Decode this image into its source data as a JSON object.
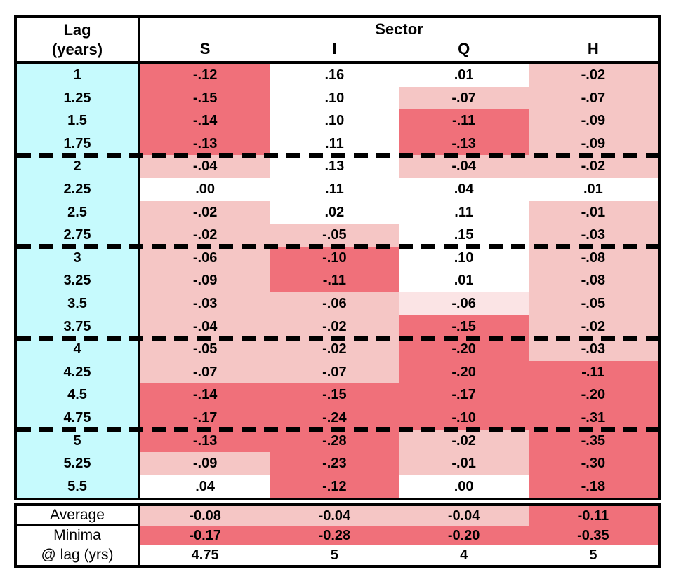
{
  "header": {
    "lag_title": "Lag",
    "lag_subtitle": "(years)",
    "sector_title": "Sector",
    "columns": [
      "S",
      "I",
      "Q",
      "H"
    ]
  },
  "colors": {
    "white": "#FFFFFF",
    "xlight": "#FBE4E5",
    "light": "#F5C6C5",
    "dark": "#F0707A",
    "cyan": "#C6FAFD"
  },
  "rows": [
    {
      "lag": "1",
      "bold": true,
      "group_end": false,
      "values": [
        "-.12",
        ".16",
        ".01",
        "-.02"
      ],
      "shades": [
        "dark",
        "white",
        "white",
        "light"
      ]
    },
    {
      "lag": "1.25",
      "bold": false,
      "group_end": false,
      "values": [
        "-.15",
        ".10",
        "-.07",
        "-.07"
      ],
      "shades": [
        "dark",
        "white",
        "light",
        "light"
      ]
    },
    {
      "lag": "1.5",
      "bold": false,
      "group_end": false,
      "values": [
        "-.14",
        ".10",
        "-.11",
        "-.09"
      ],
      "shades": [
        "dark",
        "white",
        "dark",
        "light"
      ]
    },
    {
      "lag": "1.75",
      "bold": false,
      "group_end": true,
      "values": [
        "-.13",
        ".11",
        "-.13",
        "-.09"
      ],
      "shades": [
        "dark",
        "white",
        "dark",
        "light"
      ]
    },
    {
      "lag": "2",
      "bold": true,
      "group_end": false,
      "values": [
        "-.04",
        ".13",
        "-.04",
        "-.02"
      ],
      "shades": [
        "light",
        "white",
        "light",
        "light"
      ]
    },
    {
      "lag": "2.25",
      "bold": false,
      "group_end": false,
      "values": [
        ".00",
        ".11",
        ".04",
        ".01"
      ],
      "shades": [
        "white",
        "white",
        "white",
        "white"
      ]
    },
    {
      "lag": "2.5",
      "bold": false,
      "group_end": false,
      "values": [
        "-.02",
        ".02",
        ".11",
        "-.01"
      ],
      "shades": [
        "light",
        "white",
        "white",
        "light"
      ]
    },
    {
      "lag": "2.75",
      "bold": false,
      "group_end": true,
      "values": [
        "-.02",
        "-.05",
        ".15",
        "-.03"
      ],
      "shades": [
        "light",
        "light",
        "white",
        "light"
      ]
    },
    {
      "lag": "3",
      "bold": true,
      "group_end": false,
      "values": [
        "-.06",
        "-.10",
        ".10",
        "-.08"
      ],
      "shades": [
        "light",
        "dark",
        "white",
        "light"
      ]
    },
    {
      "lag": "3.25",
      "bold": false,
      "group_end": false,
      "values": [
        "-.09",
        "-.11",
        ".01",
        "-.08"
      ],
      "shades": [
        "light",
        "dark",
        "white",
        "light"
      ]
    },
    {
      "lag": "3.5",
      "bold": false,
      "group_end": false,
      "values": [
        "-.03",
        "-.06",
        "-.06",
        "-.05"
      ],
      "shades": [
        "light",
        "light",
        "xlight",
        "light"
      ]
    },
    {
      "lag": "3.75",
      "bold": false,
      "group_end": true,
      "values": [
        "-.04",
        "-.02",
        "-.15",
        "-.02"
      ],
      "shades": [
        "light",
        "light",
        "dark",
        "light"
      ]
    },
    {
      "lag": "4",
      "bold": true,
      "group_end": false,
      "values": [
        "-.05",
        "-.02",
        "-.20",
        "-.03"
      ],
      "shades": [
        "light",
        "light",
        "dark",
        "light"
      ]
    },
    {
      "lag": "4.25",
      "bold": false,
      "group_end": false,
      "values": [
        "-.07",
        "-.07",
        "-.20",
        "-.11"
      ],
      "shades": [
        "light",
        "light",
        "dark",
        "dark"
      ]
    },
    {
      "lag": "4.5",
      "bold": false,
      "group_end": false,
      "values": [
        "-.14",
        "-.15",
        "-.17",
        "-.20"
      ],
      "shades": [
        "dark",
        "dark",
        "dark",
        "dark"
      ]
    },
    {
      "lag": "4.75",
      "bold": false,
      "group_end": true,
      "values": [
        "-.17",
        "-.24",
        "-.10",
        "-.31"
      ],
      "shades": [
        "dark",
        "dark",
        "dark",
        "dark"
      ]
    },
    {
      "lag": "5",
      "bold": true,
      "group_end": false,
      "values": [
        "-.13",
        "-.28",
        "-.02",
        "-.35"
      ],
      "shades": [
        "dark",
        "dark",
        "light",
        "dark"
      ]
    },
    {
      "lag": "5.25",
      "bold": false,
      "group_end": false,
      "values": [
        "-.09",
        "-.23",
        "-.01",
        "-.30"
      ],
      "shades": [
        "light",
        "dark",
        "light",
        "dark"
      ]
    },
    {
      "lag": "5.5",
      "bold": false,
      "group_end": false,
      "values": [
        ".04",
        "-.12",
        ".00",
        "-.18"
      ],
      "shades": [
        "white",
        "dark",
        "white",
        "dark"
      ]
    }
  ],
  "footer": {
    "rows": [
      {
        "label": "Average",
        "avg": true,
        "values": [
          "-0.08",
          "-0.04",
          "-0.04",
          "-0.11"
        ],
        "shades": [
          "light",
          "light",
          "light",
          "dark"
        ]
      },
      {
        "label": "Minima",
        "avg": false,
        "values": [
          "-0.17",
          "-0.28",
          "-0.20",
          "-0.35"
        ],
        "shades": [
          "dark",
          "dark",
          "dark",
          "dark"
        ]
      },
      {
        "label": "@ lag (yrs)",
        "avg": false,
        "values": [
          "4.75",
          "5",
          "4",
          "5"
        ],
        "shades": [
          "white",
          "white",
          "white",
          "white"
        ]
      }
    ]
  },
  "chart_data": {
    "type": "table",
    "title": "Sector correlations by lag",
    "row_axis_label": "Lag (years)",
    "column_group_label": "Sector",
    "columns": [
      "S",
      "I",
      "Q",
      "H"
    ],
    "lags": [
      1,
      1.25,
      1.5,
      1.75,
      2,
      2.25,
      2.5,
      2.75,
      3,
      3.25,
      3.5,
      3.75,
      4,
      4.25,
      4.5,
      4.75,
      5,
      5.25,
      5.5
    ],
    "series": [
      {
        "name": "S",
        "values": [
          -0.12,
          -0.15,
          -0.14,
          -0.13,
          -0.04,
          0.0,
          -0.02,
          -0.02,
          -0.06,
          -0.09,
          -0.03,
          -0.04,
          -0.05,
          -0.07,
          -0.14,
          -0.17,
          -0.13,
          -0.09,
          0.04
        ]
      },
      {
        "name": "I",
        "values": [
          0.16,
          0.1,
          0.1,
          0.11,
          0.13,
          0.11,
          0.02,
          -0.05,
          -0.1,
          -0.11,
          -0.06,
          -0.02,
          -0.02,
          -0.07,
          -0.15,
          -0.24,
          -0.28,
          -0.23,
          -0.12
        ]
      },
      {
        "name": "Q",
        "values": [
          0.01,
          -0.07,
          -0.11,
          -0.13,
          -0.04,
          0.04,
          0.11,
          0.15,
          0.1,
          0.01,
          -0.06,
          -0.15,
          -0.2,
          -0.2,
          -0.17,
          -0.1,
          -0.02,
          -0.01,
          0.0
        ]
      },
      {
        "name": "H",
        "values": [
          -0.02,
          -0.07,
          -0.09,
          -0.09,
          -0.02,
          0.01,
          -0.01,
          -0.03,
          -0.08,
          -0.08,
          -0.05,
          -0.02,
          -0.03,
          -0.11,
          -0.2,
          -0.31,
          -0.35,
          -0.3,
          -0.18
        ]
      }
    ],
    "summary": {
      "average": [
        -0.08,
        -0.04,
        -0.04,
        -0.11
      ],
      "minima": [
        -0.17,
        -0.28,
        -0.2,
        -0.35
      ],
      "minima_at_lag_years": [
        4.75,
        5,
        4,
        5
      ]
    },
    "layout": {
      "heatmap_shading": "red intensity = more negative correlation",
      "group_separators_after_lags": [
        1.75,
        2.75,
        3.75,
        4.75
      ]
    }
  }
}
